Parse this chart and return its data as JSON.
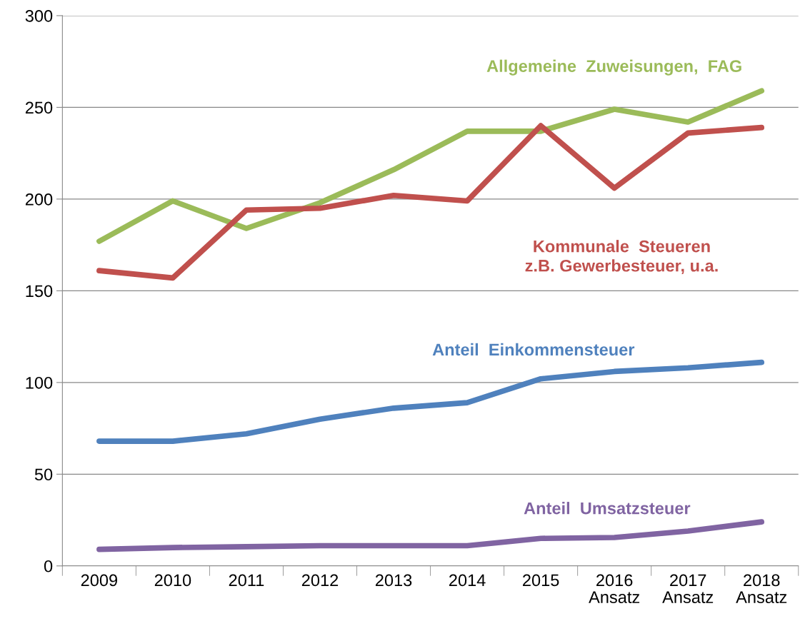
{
  "chart_data": {
    "type": "line",
    "categories": [
      "2009",
      "2010",
      "2011",
      "2012",
      "2013",
      "2014",
      "2015",
      "2016\nAnsatz",
      "2017\nAnsatz",
      "2018\nAnsatz"
    ],
    "series": [
      {
        "name": "Allgemeine  Zuweisungen,  FAG",
        "color": "#9bbb59",
        "values": [
          177,
          199,
          184,
          198,
          216,
          237,
          237,
          249,
          242,
          259
        ]
      },
      {
        "name": "Kommunale  Steueren\nz.B. Gewerbesteuer, u.a.",
        "color": "#c0504d",
        "values": [
          161,
          157,
          194,
          195,
          202,
          199,
          240,
          206,
          236,
          239
        ]
      },
      {
        "name": "Anteil  Einkommensteuer",
        "color": "#4f81bd",
        "values": [
          68,
          68,
          72,
          80,
          86,
          89,
          102,
          106,
          108,
          111
        ]
      },
      {
        "name": "Anteil  Umsatzsteuer",
        "color": "#8064a2",
        "values": [
          9,
          10,
          10.5,
          11,
          11,
          11,
          15,
          15.5,
          19,
          24
        ]
      }
    ],
    "ylim": [
      0,
      300
    ],
    "yticks": [
      0,
      50,
      100,
      150,
      200,
      250,
      300
    ],
    "grid": "y",
    "marker": "none",
    "line_style": "solid"
  }
}
